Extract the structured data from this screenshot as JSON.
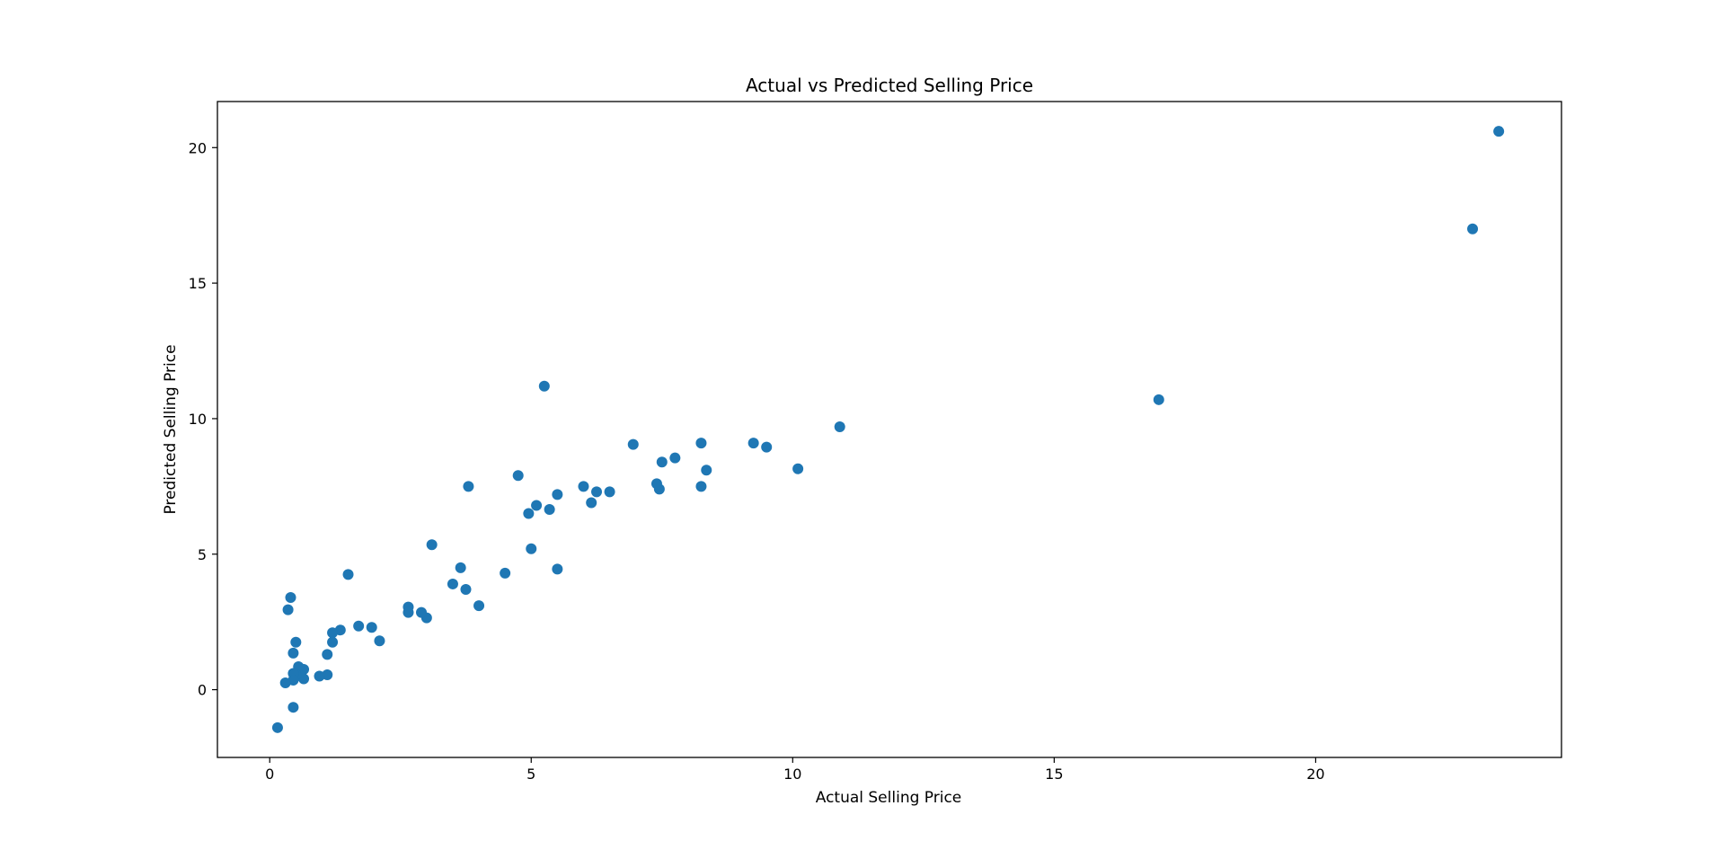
{
  "chart_data": {
    "type": "scatter",
    "title": "Actual vs Predicted Selling Price",
    "xlabel": "Actual Selling Price",
    "ylabel": "Predicted Selling Price",
    "xlim": [
      -1.0,
      24.7
    ],
    "ylim": [
      -2.5,
      21.7
    ],
    "xticks": [
      0,
      5,
      10,
      15,
      20
    ],
    "yticks": [
      0,
      5,
      10,
      15,
      20
    ],
    "grid": false,
    "legend": "none",
    "marker_color": "#1f77b4",
    "series": [
      {
        "points": [
          [
            23.5,
            20.6
          ],
          [
            23.0,
            17.0
          ],
          [
            17.0,
            10.7
          ],
          [
            10.9,
            9.7
          ],
          [
            10.1,
            8.15
          ],
          [
            9.5,
            8.95
          ],
          [
            9.25,
            9.1
          ],
          [
            8.35,
            8.1
          ],
          [
            8.25,
            9.1
          ],
          [
            8.25,
            7.5
          ],
          [
            7.75,
            8.55
          ],
          [
            7.5,
            8.4
          ],
          [
            7.45,
            7.4
          ],
          [
            7.4,
            7.6
          ],
          [
            6.95,
            9.05
          ],
          [
            6.5,
            7.3
          ],
          [
            6.25,
            7.3
          ],
          [
            6.15,
            6.9
          ],
          [
            6.0,
            7.5
          ],
          [
            5.5,
            7.2
          ],
          [
            5.5,
            4.45
          ],
          [
            5.35,
            6.65
          ],
          [
            5.25,
            11.2
          ],
          [
            5.1,
            6.8
          ],
          [
            5.0,
            5.2
          ],
          [
            4.95,
            6.5
          ],
          [
            4.75,
            7.9
          ],
          [
            4.5,
            4.3
          ],
          [
            4.0,
            3.1
          ],
          [
            3.8,
            7.5
          ],
          [
            3.75,
            3.7
          ],
          [
            3.65,
            4.5
          ],
          [
            3.5,
            3.9
          ],
          [
            3.1,
            5.35
          ],
          [
            3.0,
            2.65
          ],
          [
            2.9,
            2.85
          ],
          [
            2.65,
            3.05
          ],
          [
            2.65,
            2.85
          ],
          [
            2.1,
            1.8
          ],
          [
            1.95,
            2.3
          ],
          [
            1.7,
            2.35
          ],
          [
            1.5,
            4.25
          ],
          [
            1.35,
            2.2
          ],
          [
            1.2,
            2.1
          ],
          [
            1.2,
            1.75
          ],
          [
            1.1,
            1.3
          ],
          [
            1.1,
            0.55
          ],
          [
            0.95,
            0.5
          ],
          [
            0.65,
            0.75
          ],
          [
            0.65,
            0.4
          ],
          [
            0.6,
            0.5
          ],
          [
            0.55,
            0.85
          ],
          [
            0.5,
            1.75
          ],
          [
            0.5,
            0.55
          ],
          [
            0.45,
            1.35
          ],
          [
            0.45,
            0.6
          ],
          [
            0.45,
            0.35
          ],
          [
            0.45,
            -0.65
          ],
          [
            0.4,
            3.4
          ],
          [
            0.35,
            2.95
          ],
          [
            0.3,
            0.25
          ],
          [
            0.15,
            -1.4
          ]
        ]
      }
    ]
  }
}
